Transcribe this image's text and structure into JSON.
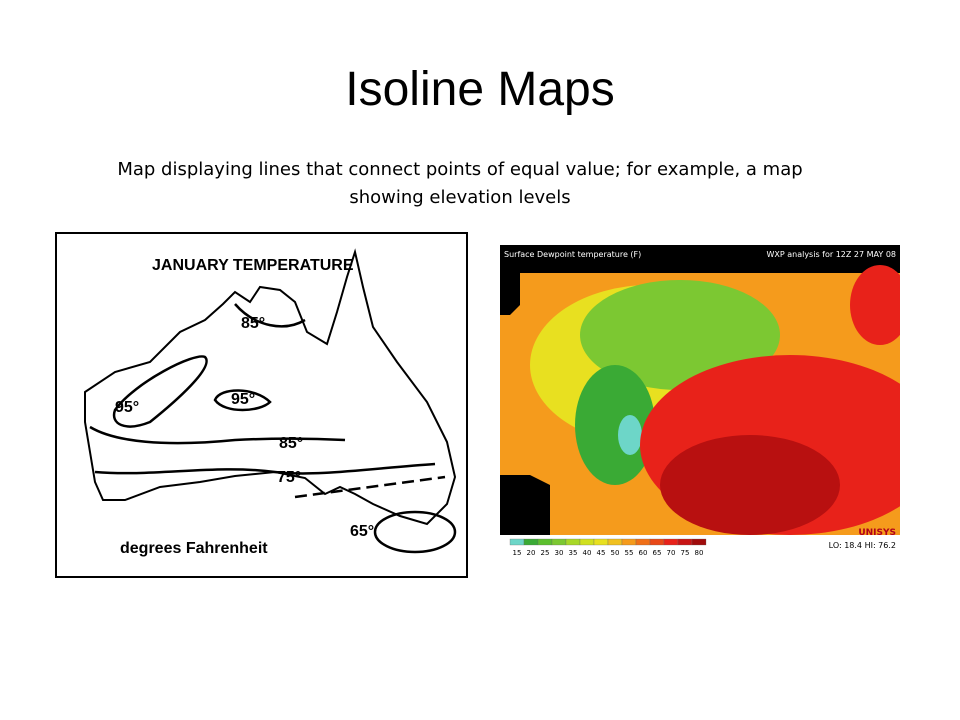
{
  "title": "Isoline Maps",
  "subtitle": "Map displaying lines that connect points of equal value; for example, a map showing elevation levels",
  "left_map": {
    "title": "JANUARY TEMPERATURE",
    "labels": [
      "85°",
      "95°",
      "95°",
      "85°",
      "75°",
      "65°"
    ],
    "caption": "degrees Fahrenheit"
  },
  "right_map": {
    "title": "Surface Dewpoint temperature (F)",
    "analysis": "WXP analysis for 12Z 27 MAY 08",
    "legend": [
      15,
      20,
      25,
      30,
      35,
      40,
      45,
      50,
      55,
      60,
      65,
      70,
      75,
      80
    ],
    "stats": "LO: 18.4  HI: 76.2",
    "brand": "UNISYS"
  }
}
